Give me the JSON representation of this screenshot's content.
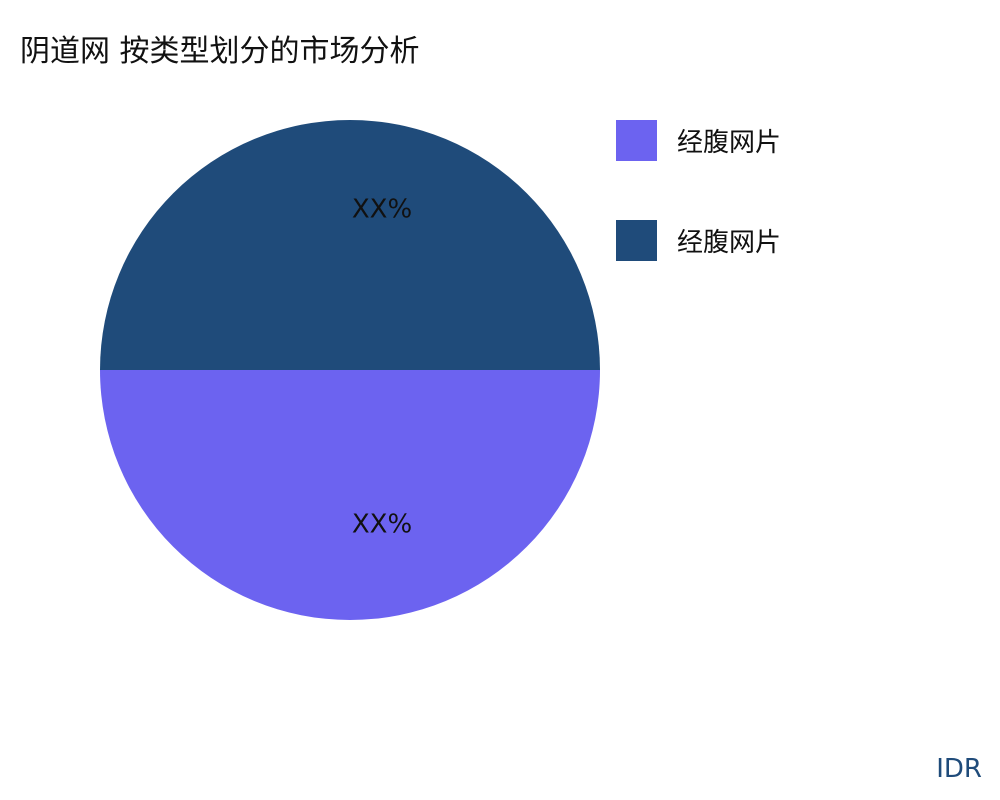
{
  "chart_data": {
    "type": "pie",
    "title": "阴道网 按类型划分的市场分析",
    "slices": [
      {
        "label": "经腹网片",
        "value": 50,
        "data_label": "XX%",
        "color": "#6c63f0"
      },
      {
        "label": "经腹网片",
        "value": 50,
        "data_label": "XX%",
        "color": "#1f4b7a"
      }
    ],
    "legend_position": "right"
  },
  "brand": "IDR"
}
